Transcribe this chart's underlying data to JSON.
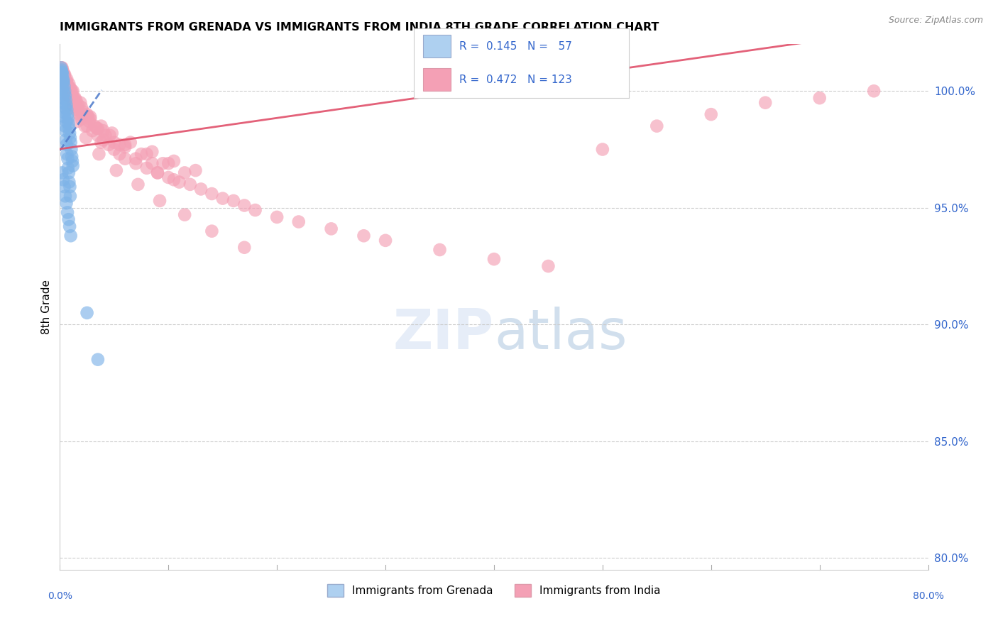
{
  "title": "IMMIGRANTS FROM GRENADA VS IMMIGRANTS FROM INDIA 8TH GRADE CORRELATION CHART",
  "source": "Source: ZipAtlas.com",
  "ylabel": "8th Grade",
  "y_ticks_right": [
    100.0,
    95.0,
    90.0,
    85.0,
    80.0
  ],
  "y_tick_labels_right": [
    "100.0%",
    "95.0%",
    "90.0%",
    "85.0%",
    "80.0%"
  ],
  "xlim": [
    0.0,
    80.0
  ],
  "ylim": [
    79.5,
    102.0
  ],
  "legend_label1": "Immigrants from Grenada",
  "legend_label2": "Immigrants from India",
  "R1": 0.145,
  "N1": 57,
  "R2": 0.472,
  "N2": 123,
  "color_grenada": "#7EB3E8",
  "color_india": "#F4A0B5",
  "color_trendline1": "#5580CC",
  "color_trendline2": "#E0506A",
  "color_legend_box1": "#AED0F0",
  "color_legend_box2": "#F4A0B5",
  "color_text_blue": "#3366CC",
  "background_color": "#FFFFFF",
  "grenada_x": [
    0.1,
    0.15,
    0.2,
    0.25,
    0.3,
    0.35,
    0.4,
    0.45,
    0.5,
    0.55,
    0.6,
    0.65,
    0.7,
    0.75,
    0.8,
    0.85,
    0.9,
    0.95,
    1.0,
    1.05,
    1.1,
    1.15,
    1.2,
    0.2,
    0.3,
    0.4,
    0.5,
    0.6,
    0.7,
    0.8,
    0.9,
    1.0,
    0.15,
    0.25,
    0.35,
    0.45,
    0.55,
    0.65,
    0.75,
    0.85,
    0.95,
    0.12,
    0.22,
    0.32,
    0.42,
    0.52,
    0.62,
    0.72,
    0.82,
    0.92,
    3.5,
    2.5,
    0.18,
    0.28,
    0.38,
    0.48,
    0.58
  ],
  "grenada_y": [
    101.0,
    100.9,
    100.8,
    100.7,
    100.5,
    100.4,
    100.2,
    100.0,
    99.8,
    99.6,
    99.4,
    99.2,
    99.0,
    98.8,
    98.6,
    98.4,
    98.2,
    98.0,
    97.8,
    97.5,
    97.2,
    97.0,
    96.8,
    96.5,
    96.2,
    95.9,
    95.5,
    95.2,
    94.8,
    94.5,
    94.2,
    93.8,
    100.3,
    99.7,
    99.1,
    98.5,
    97.9,
    97.3,
    96.7,
    96.1,
    95.5,
    100.6,
    100.1,
    99.5,
    98.9,
    98.3,
    97.7,
    97.1,
    96.5,
    95.9,
    88.5,
    90.5,
    100.8,
    100.4,
    99.9,
    99.3,
    98.7
  ],
  "india_x": [
    0.2,
    0.3,
    0.4,
    0.5,
    0.6,
    0.7,
    0.8,
    0.9,
    1.0,
    1.2,
    1.5,
    1.8,
    2.0,
    2.5,
    3.0,
    3.5,
    4.0,
    4.5,
    5.0,
    5.5,
    6.0,
    7.0,
    8.0,
    9.0,
    10.0,
    11.0,
    12.0,
    13.0,
    14.0,
    15.0,
    16.0,
    17.0,
    18.0,
    20.0,
    22.0,
    25.0,
    28.0,
    30.0,
    35.0,
    40.0,
    45.0,
    50.0,
    55.0,
    60.0,
    65.0,
    70.0,
    75.0,
    0.35,
    0.55,
    0.75,
    0.95,
    1.3,
    1.7,
    2.2,
    2.8,
    3.8,
    4.8,
    6.5,
    8.5,
    10.5,
    12.5,
    0.25,
    0.45,
    0.65,
    0.85,
    1.1,
    1.4,
    2.0,
    2.6,
    3.2,
    4.2,
    5.5,
    7.5,
    9.5,
    11.5,
    0.15,
    0.28,
    0.42,
    0.62,
    0.82,
    1.05,
    1.35,
    1.65,
    2.1,
    2.7,
    3.4,
    4.6,
    6.0,
    8.0,
    10.0,
    0.5,
    1.0,
    1.5,
    2.5,
    3.5,
    5.0,
    7.0,
    9.0,
    0.8,
    1.6,
    2.3,
    3.8,
    0.3,
    0.6,
    1.2,
    1.9,
    2.8,
    4.0,
    6.0,
    8.5,
    10.5,
    0.4,
    0.7,
    1.0,
    1.6,
    2.4,
    3.6,
    5.2,
    7.2,
    9.2,
    11.5,
    14.0,
    17.0
  ],
  "india_y": [
    101.0,
    100.8,
    100.7,
    100.5,
    100.3,
    100.2,
    100.0,
    99.8,
    99.7,
    99.4,
    99.2,
    99.0,
    98.8,
    98.5,
    98.3,
    98.1,
    97.9,
    97.7,
    97.5,
    97.3,
    97.1,
    96.9,
    96.7,
    96.5,
    96.3,
    96.1,
    96.0,
    95.8,
    95.6,
    95.4,
    95.3,
    95.1,
    94.9,
    94.6,
    94.4,
    94.1,
    93.8,
    93.6,
    93.2,
    92.8,
    92.5,
    97.5,
    98.5,
    99.0,
    99.5,
    99.7,
    100.0,
    100.6,
    100.4,
    100.2,
    100.0,
    99.7,
    99.4,
    99.1,
    98.8,
    98.5,
    98.2,
    97.8,
    97.4,
    97.0,
    96.6,
    100.9,
    100.7,
    100.5,
    100.3,
    100.0,
    99.7,
    99.3,
    98.9,
    98.5,
    98.1,
    97.7,
    97.3,
    96.9,
    96.5,
    101.0,
    100.8,
    100.6,
    100.4,
    100.2,
    99.9,
    99.6,
    99.3,
    99.0,
    98.7,
    98.4,
    98.1,
    97.7,
    97.3,
    96.9,
    100.5,
    100.1,
    99.6,
    99.0,
    98.4,
    97.8,
    97.1,
    96.5,
    99.8,
    99.2,
    98.5,
    97.8,
    100.7,
    100.4,
    100.0,
    99.5,
    98.9,
    98.3,
    97.6,
    96.9,
    96.2,
    100.3,
    99.8,
    99.3,
    98.7,
    98.0,
    97.3,
    96.6,
    96.0,
    95.3,
    94.7,
    94.0,
    93.3
  ]
}
